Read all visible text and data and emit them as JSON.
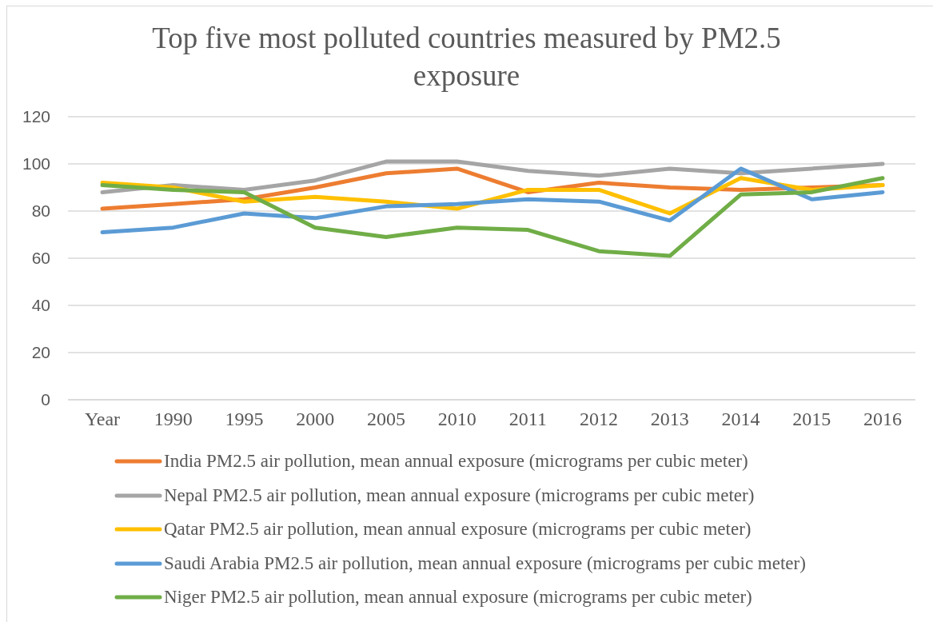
{
  "chart_data": {
    "type": "line",
    "title": "Top five most polluted countries measured by PM2.5 exposure",
    "categories": [
      "Year",
      "1990",
      "1995",
      "2000",
      "2005",
      "2010",
      "2011",
      "2012",
      "2013",
      "2014",
      "2015",
      "2016"
    ],
    "series": [
      {
        "name": "India PM2.5 air pollution, mean annual exposure (micrograms per cubic meter)",
        "color": "#ed7d31",
        "values": [
          81,
          83,
          85,
          90,
          96,
          98,
          88,
          92,
          90,
          89,
          90,
          91
        ]
      },
      {
        "name": "Nepal PM2.5 air pollution, mean annual exposure (micrograms per cubic meter)",
        "color": "#a5a5a5",
        "values": [
          88,
          91,
          89,
          93,
          101,
          101,
          97,
          95,
          98,
          96,
          98,
          100
        ]
      },
      {
        "name": "Qatar PM2.5 air pollution, mean annual exposure (micrograms per cubic meter)",
        "color": "#ffc000",
        "values": [
          92,
          90,
          84,
          86,
          84,
          81,
          89,
          89,
          79,
          94,
          89,
          91
        ]
      },
      {
        "name": "Saudi Arabia PM2.5 air pollution, mean annual exposure (micrograms per cubic meter)",
        "color": "#5b9bd5",
        "values": [
          71,
          73,
          79,
          77,
          82,
          83,
          85,
          84,
          76,
          98,
          85,
          88
        ]
      },
      {
        "name": "Niger PM2.5 air pollution, mean annual exposure (micrograms per cubic meter)",
        "color": "#70ad47",
        "values": [
          91,
          89,
          88,
          73,
          69,
          73,
          72,
          63,
          61,
          87,
          88,
          94
        ]
      }
    ],
    "ylim": [
      0,
      120
    ],
    "yticks": [
      0,
      20,
      40,
      60,
      80,
      100,
      120
    ],
    "grid": "y",
    "legend": "bottom",
    "marker": "none",
    "line_style": "solid"
  }
}
